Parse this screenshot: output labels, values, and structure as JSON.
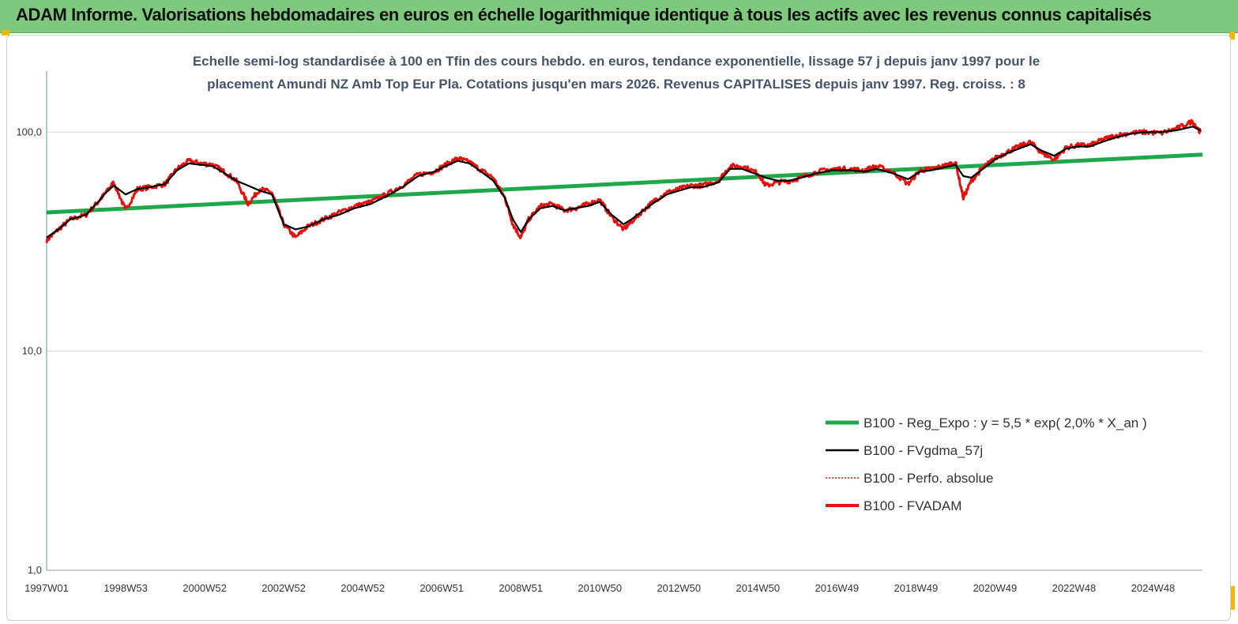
{
  "banner": {
    "title": "ADAM Informe. Valorisations hebdomadaires en euros en échelle logarithmique identique à tous les actifs avec les revenus connus capitalisés"
  },
  "colors": {
    "banner": "#7ec97e",
    "trend": "#1fa84a",
    "smooth": "#000000",
    "series": "#e8100c",
    "corner": "#f2b705"
  },
  "chart_data": {
    "type": "line",
    "subtitle": [
      "Echelle semi-log standardisée à 100 en Tfin des cours hebdo. en euros, tendance exponentielle, lissage 57 j depuis janv 1997 pour le",
      "placement Amundi NZ Amb Top Eur Pla. Cotations jusqu'en mars 2026. Revenus CAPITALISES depuis janv 1997. Reg. croiss. : 8"
    ],
    "yscale": "log",
    "ylim": [
      1,
      190
    ],
    "y_ticks": [
      {
        "value": 1,
        "label": "1,0"
      },
      {
        "value": 10,
        "label": "10,0"
      },
      {
        "value": 100,
        "label": "100,0"
      }
    ],
    "xlim": [
      1997.0,
      2026.25
    ],
    "x_ticks": [
      {
        "t": 1997.0,
        "label": "1997W01"
      },
      {
        "t": 1999.0,
        "label": "1998W53"
      },
      {
        "t": 2001.0,
        "label": "2000W52"
      },
      {
        "t": 2003.0,
        "label": "2002W52"
      },
      {
        "t": 2005.0,
        "label": "2004W52"
      },
      {
        "t": 2007.0,
        "label": "2006W51"
      },
      {
        "t": 2009.0,
        "label": "2008W51"
      },
      {
        "t": 2011.0,
        "label": "2010W50"
      },
      {
        "t": 2013.0,
        "label": "2012W50"
      },
      {
        "t": 2015.0,
        "label": "2014W50"
      },
      {
        "t": 2017.0,
        "label": "2016W49"
      },
      {
        "t": 2019.0,
        "label": "2018W49"
      },
      {
        "t": 2021.0,
        "label": "2020W49"
      },
      {
        "t": 2023.0,
        "label": "2022W48"
      },
      {
        "t": 2025.0,
        "label": "2024W48"
      }
    ],
    "grid": "horizontal",
    "legend_position": "bottom-right",
    "series": [
      {
        "name": "B100 - Reg_Expo : y = 5,5 * exp( 2,0% *  X_an )",
        "style": "trend",
        "x": [
          1997.0,
          2026.25
        ],
        "y": [
          43,
          79
        ]
      },
      {
        "name": "B100 - FVgdma_57j",
        "style": "smooth",
        "x": [
          1997.0,
          1997.3,
          1997.6,
          1998.0,
          1998.3,
          1998.5,
          1998.7,
          1999.0,
          1999.3,
          1999.6,
          2000.0,
          2000.3,
          2000.6,
          2000.9,
          2001.2,
          2001.5,
          2001.8,
          2002.1,
          2002.4,
          2002.7,
          2003.0,
          2003.3,
          2003.6,
          2004.0,
          2004.4,
          2004.8,
          2005.2,
          2005.6,
          2006.0,
          2006.4,
          2006.8,
          2007.1,
          2007.4,
          2007.7,
          2008.0,
          2008.3,
          2008.6,
          2008.8,
          2009.0,
          2009.2,
          2009.5,
          2009.8,
          2010.1,
          2010.4,
          2010.7,
          2011.0,
          2011.3,
          2011.6,
          2011.8,
          2012.1,
          2012.4,
          2012.7,
          2013.0,
          2013.3,
          2013.6,
          2014.0,
          2014.3,
          2014.6,
          2015.0,
          2015.2,
          2015.5,
          2015.8,
          2016.1,
          2016.5,
          2016.9,
          2017.3,
          2017.7,
          2018.0,
          2018.4,
          2018.8,
          2019.1,
          2019.4,
          2019.7,
          2020.0,
          2020.2,
          2020.4,
          2020.7,
          2021.0,
          2021.3,
          2021.6,
          2021.9,
          2022.2,
          2022.5,
          2022.8,
          2023.1,
          2023.4,
          2023.7,
          2024.0,
          2024.4,
          2024.8,
          2025.2,
          2025.6,
          2026.0,
          2026.2
        ],
        "y": [
          33,
          36,
          40,
          42,
          48,
          53,
          57,
          52,
          55,
          56,
          58,
          67,
          72,
          71,
          70,
          65,
          60,
          57,
          54,
          52,
          38,
          36,
          37,
          40,
          42,
          45,
          47,
          51,
          56,
          63,
          66,
          70,
          74,
          72,
          66,
          60,
          50,
          40,
          35,
          40,
          45,
          46,
          44,
          45,
          46,
          48,
          42,
          38,
          40,
          44,
          48,
          52,
          54,
          56,
          56,
          59,
          68,
          68,
          64,
          62,
          60,
          60,
          62,
          65,
          67,
          67,
          66,
          68,
          65,
          61,
          66,
          67,
          69,
          71,
          63,
          62,
          68,
          75,
          80,
          84,
          88,
          82,
          78,
          84,
          86,
          86,
          90,
          94,
          98,
          100,
          100,
          102,
          106,
          102
        ]
      },
      {
        "name": "B100 - Perfo. absolue",
        "style": "dotted",
        "x": [],
        "y": []
      },
      {
        "name": "B100 - FVADAM",
        "style": "series",
        "x": [
          1997.0,
          1997.3,
          1997.6,
          1998.0,
          1998.3,
          1998.5,
          1998.7,
          1999.0,
          1999.3,
          1999.6,
          2000.0,
          2000.3,
          2000.6,
          2000.9,
          2001.2,
          2001.5,
          2001.8,
          2002.1,
          2002.4,
          2002.7,
          2003.0,
          2003.3,
          2003.6,
          2004.0,
          2004.4,
          2004.8,
          2005.2,
          2005.6,
          2006.0,
          2006.4,
          2006.8,
          2007.1,
          2007.4,
          2007.7,
          2008.0,
          2008.3,
          2008.6,
          2008.8,
          2009.0,
          2009.2,
          2009.5,
          2009.8,
          2010.1,
          2010.4,
          2010.7,
          2011.0,
          2011.3,
          2011.6,
          2011.8,
          2012.1,
          2012.4,
          2012.7,
          2013.0,
          2013.3,
          2013.6,
          2014.0,
          2014.3,
          2014.6,
          2015.0,
          2015.2,
          2015.5,
          2015.8,
          2016.1,
          2016.5,
          2016.9,
          2017.3,
          2017.7,
          2018.0,
          2018.4,
          2018.8,
          2019.1,
          2019.4,
          2019.7,
          2020.0,
          2020.2,
          2020.4,
          2020.7,
          2021.0,
          2021.3,
          2021.6,
          2021.9,
          2022.2,
          2022.5,
          2022.8,
          2023.1,
          2023.4,
          2023.7,
          2024.0,
          2024.4,
          2024.8,
          2025.2,
          2025.6,
          2026.0,
          2026.2
        ],
        "y": [
          32,
          36,
          40,
          42,
          48,
          53,
          59,
          44,
          55,
          56,
          58,
          68,
          74,
          72,
          71,
          66,
          60,
          47,
          55,
          53,
          38,
          33,
          37,
          40,
          43,
          46,
          48,
          52,
          57,
          64,
          66,
          71,
          76,
          73,
          67,
          62,
          50,
          38,
          33,
          40,
          46,
          47,
          44,
          45,
          47,
          49,
          41,
          36,
          39,
          44,
          49,
          53,
          55,
          57,
          57,
          60,
          70,
          70,
          65,
          57,
          59,
          60,
          62,
          66,
          68,
          68,
          67,
          70,
          66,
          58,
          67,
          68,
          70,
          73,
          50,
          60,
          69,
          76,
          81,
          86,
          90,
          80,
          75,
          85,
          87,
          87,
          92,
          96,
          99,
          100,
          99,
          104,
          112,
          100
        ]
      }
    ]
  }
}
